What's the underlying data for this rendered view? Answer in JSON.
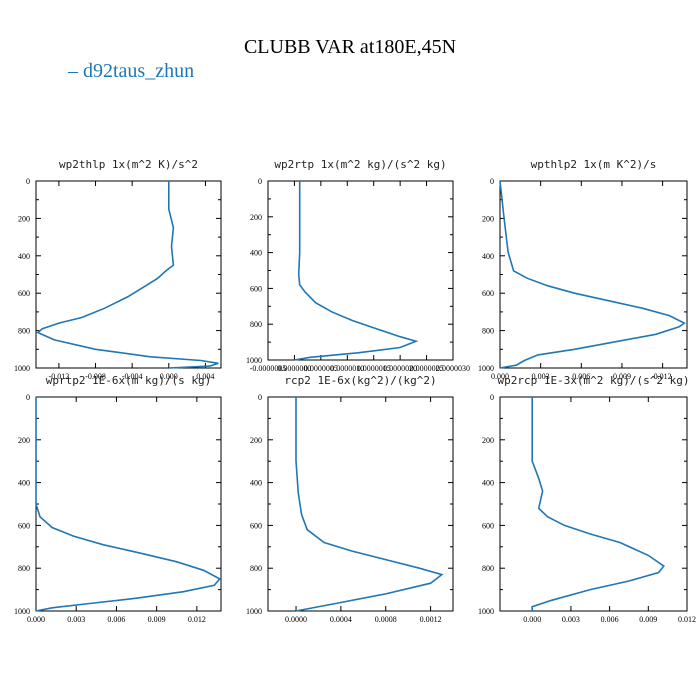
{
  "title": "CLUBB VAR at180E,45N",
  "legend": {
    "label": "d92taus_zhun",
    "color": "#1f77b4"
  },
  "chart_data": [
    {
      "type": "line",
      "title": "wp2thlp  1x(m^2 K)/s^2",
      "ylim": [
        1000,
        0
      ],
      "y_ticks": [
        0,
        200,
        400,
        600,
        800,
        1000
      ],
      "xlim": [
        -0.0145,
        0.0057
      ],
      "x_ticks": [
        -0.012,
        -0.008,
        -0.004,
        0.0,
        0.004
      ],
      "x_tick_labels": [
        "-0.012",
        "-0.008",
        "-0.004",
        "0.000",
        "0.004"
      ],
      "series": [
        {
          "name": "d92taus_zhun",
          "color": "#1f77b4",
          "x": [
            0.0,
            0.0,
            0.0005,
            0.0003,
            0.0005,
            -0.0003,
            -0.0012,
            -0.0025,
            -0.0045,
            -0.007,
            -0.0095,
            -0.012,
            -0.0138,
            -0.0143,
            -0.0125,
            -0.008,
            -0.002,
            0.0035,
            0.0054,
            0.0045,
            0.0
          ],
          "y": [
            0,
            150,
            250,
            350,
            450,
            480,
            520,
            560,
            620,
            680,
            730,
            760,
            790,
            810,
            850,
            900,
            940,
            960,
            975,
            990,
            1000
          ]
        }
      ]
    },
    {
      "type": "line",
      "title": "wp2rtp  1x(m^2 kg)/(s^2 kg)",
      "ylim": [
        1000,
        0
      ],
      "y_ticks": [
        0,
        200,
        400,
        600,
        800,
        1000
      ],
      "xlim": [
        -5e-07,
        3e-06
      ],
      "x_ticks": [
        -5e-07,
        0.0,
        5e-07,
        1e-06,
        1.5e-06,
        2e-06,
        2.5e-06,
        3e-06
      ],
      "x_tick_labels": [
        "-0.0000005",
        "0.0000000",
        "0.0000005",
        "0.0000010",
        "0.0000015",
        "0.0000020",
        "0.0000025",
        "0.0000030"
      ],
      "series": [
        {
          "name": "d92taus_zhun",
          "color": "#1f77b4",
          "x": [
            1e-07,
            1e-07,
            1e-07,
            8e-08,
            1e-07,
            2e-07,
            4e-07,
            7e-07,
            1.1e-06,
            1.6e-06,
            2e-06,
            2.3e-06,
            2e-06,
            1.2e-06,
            3e-07,
            0.0
          ],
          "y": [
            0,
            200,
            400,
            520,
            580,
            620,
            680,
            730,
            780,
            830,
            870,
            895,
            930,
            960,
            985,
            1000
          ]
        }
      ]
    },
    {
      "type": "line",
      "title": "wpthlp2  1x(m K^2)/s",
      "ylim": [
        1000,
        0
      ],
      "y_ticks": [
        0,
        200,
        400,
        600,
        800,
        1000
      ],
      "xlim": [
        0.0,
        0.0138
      ],
      "x_ticks": [
        0.0,
        0.003,
        0.006,
        0.009,
        0.012
      ],
      "x_tick_labels": [
        "0.000",
        "0.003",
        "0.006",
        "0.009",
        "0.012"
      ],
      "series": [
        {
          "name": "d92taus_zhun",
          "color": "#1f77b4",
          "x": [
            0.0,
            0.0003,
            0.0006,
            0.001,
            0.002,
            0.0035,
            0.0055,
            0.008,
            0.0105,
            0.0125,
            0.0136,
            0.0132,
            0.0115,
            0.0085,
            0.0055,
            0.0028,
            0.0018,
            0.0012,
            0.0
          ],
          "y": [
            0,
            200,
            380,
            480,
            520,
            560,
            600,
            640,
            680,
            720,
            760,
            780,
            820,
            860,
            900,
            930,
            960,
            985,
            1000
          ]
        }
      ]
    },
    {
      "type": "line",
      "title": "wprtp2  1E-6x(m kg)/(s kg)",
      "ylim": [
        1000,
        0
      ],
      "y_ticks": [
        0,
        200,
        400,
        600,
        800,
        1000
      ],
      "xlim": [
        0.0,
        0.0138
      ],
      "x_ticks": [
        0.0,
        0.003,
        0.006,
        0.009,
        0.012
      ],
      "x_tick_labels": [
        "0.000",
        "0.003",
        "0.006",
        "0.009",
        "0.012"
      ],
      "series": [
        {
          "name": "d92taus_zhun",
          "color": "#1f77b4",
          "x": [
            0.0,
            0.0,
            0.0003,
            0.0012,
            0.0028,
            0.005,
            0.0078,
            0.0105,
            0.0125,
            0.0137,
            0.0133,
            0.011,
            0.0075,
            0.004,
            0.0012,
            0.0
          ],
          "y": [
            0,
            500,
            560,
            610,
            650,
            690,
            730,
            770,
            810,
            850,
            880,
            910,
            940,
            965,
            985,
            1000
          ]
        }
      ]
    },
    {
      "type": "line",
      "title": "rcp2  1E-6x(kg^2)/(kg^2)",
      "ylim": [
        1000,
        0
      ],
      "y_ticks": [
        0,
        200,
        400,
        600,
        800,
        1000
      ],
      "xlim": [
        -0.00025,
        0.0014
      ],
      "x_ticks": [
        0.0,
        0.0004,
        0.0008,
        0.0012
      ],
      "x_tick_labels": [
        "0.0000",
        "0.0004",
        "0.0008",
        "0.0012"
      ],
      "series": [
        {
          "name": "d92taus_zhun",
          "color": "#1f77b4",
          "x": [
            0.0,
            0.0,
            2e-05,
            5e-05,
            0.0001,
            0.00025,
            0.0005,
            0.0008,
            0.0011,
            0.0013,
            0.0012,
            0.0008,
            0.0003,
            0.0
          ],
          "y": [
            0,
            300,
            450,
            550,
            620,
            680,
            720,
            760,
            800,
            830,
            870,
            920,
            970,
            1000
          ]
        }
      ]
    },
    {
      "type": "line",
      "title": "wp2rcp  1E-3x(m^2 kg)/(s^2 kg)",
      "ylim": [
        1000,
        0
      ],
      "y_ticks": [
        0,
        200,
        400,
        600,
        800,
        1000
      ],
      "xlim": [
        -0.0025,
        0.012
      ],
      "x_ticks": [
        0.0,
        0.003,
        0.006,
        0.009,
        0.012
      ],
      "x_tick_labels": [
        "0.000",
        "0.003",
        "0.006",
        "0.009",
        "0.012"
      ],
      "series": [
        {
          "name": "d92taus_zhun",
          "color": "#1f77b4",
          "x": [
            0.0,
            0.0,
            0.0005,
            0.0008,
            0.0005,
            0.0012,
            0.0025,
            0.0045,
            0.0068,
            0.009,
            0.0102,
            0.0098,
            0.0075,
            0.0045,
            0.0015,
            0.0,
            0.0
          ],
          "y": [
            0,
            300,
            380,
            440,
            520,
            560,
            600,
            640,
            680,
            740,
            790,
            820,
            860,
            900,
            950,
            980,
            1000
          ]
        }
      ]
    }
  ]
}
